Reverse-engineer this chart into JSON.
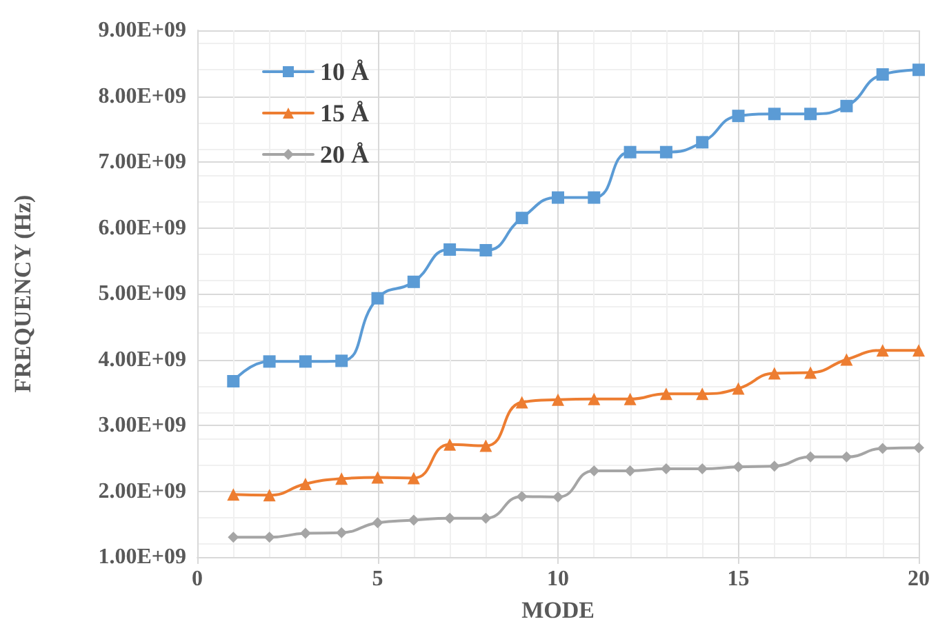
{
  "chart_data": {
    "type": "line",
    "xlabel": "MODE",
    "ylabel": "FREQUENCY (Hz)",
    "x": [
      1,
      2,
      3,
      4,
      5,
      6,
      7,
      8,
      9,
      10,
      11,
      12,
      13,
      14,
      15,
      16,
      17,
      18,
      19,
      20
    ],
    "series": [
      {
        "name": "10 Å",
        "color": "#5b9bd5",
        "marker": "square",
        "values": [
          3670000000.0,
          3970000000.0,
          3970000000.0,
          3980000000.0,
          4930000000.0,
          5180000000.0,
          5670000000.0,
          5660000000.0,
          6150000000.0,
          6460000000.0,
          6460000000.0,
          7150000000.0,
          7150000000.0,
          7300000000.0,
          7700000000.0,
          7730000000.0,
          7730000000.0,
          7850000000.0,
          8330000000.0,
          8400000000.0
        ]
      },
      {
        "name": "15 Å",
        "color": "#ed7d31",
        "marker": "triangle",
        "values": [
          1950000000.0,
          1940000000.0,
          2110000000.0,
          2190000000.0,
          2210000000.0,
          2200000000.0,
          2710000000.0,
          2690000000.0,
          3350000000.0,
          3390000000.0,
          3400000000.0,
          3400000000.0,
          3480000000.0,
          3480000000.0,
          3560000000.0,
          3790000000.0,
          3800000000.0,
          4000000000.0,
          4140000000.0,
          4140000000.0
        ]
      },
      {
        "name": "20 Å",
        "color": "#a5a5a5",
        "marker": "diamond",
        "values": [
          1300000000.0,
          1300000000.0,
          1360000000.0,
          1370000000.0,
          1520000000.0,
          1560000000.0,
          1590000000.0,
          1590000000.0,
          1920000000.0,
          1910000000.0,
          2310000000.0,
          2310000000.0,
          2340000000.0,
          2340000000.0,
          2370000000.0,
          2380000000.0,
          2520000000.0,
          2520000000.0,
          2650000000.0,
          2660000000.0
        ]
      }
    ],
    "xlim": [
      0,
      20
    ],
    "xticks": [
      0,
      5,
      10,
      15,
      20
    ],
    "ylim": [
      1000000000.0,
      9000000000.0
    ],
    "yticks": [
      {
        "value": 1000000000.0,
        "label": "1.00E+09"
      },
      {
        "value": 2000000000.0,
        "label": "2.00E+09"
      },
      {
        "value": 3000000000.0,
        "label": "3.00E+09"
      },
      {
        "value": 4000000000.0,
        "label": "4.00E+09"
      },
      {
        "value": 5000000000.0,
        "label": "5.00E+09"
      },
      {
        "value": 6000000000.0,
        "label": "6.00E+09"
      },
      {
        "value": 7000000000.0,
        "label": "7.00E+09"
      },
      {
        "value": 8000000000.0,
        "label": "8.00E+09"
      },
      {
        "value": 9000000000.0,
        "label": "9.00E+09"
      }
    ],
    "grid": true,
    "legend": "top left",
    "line_style": "solid"
  }
}
